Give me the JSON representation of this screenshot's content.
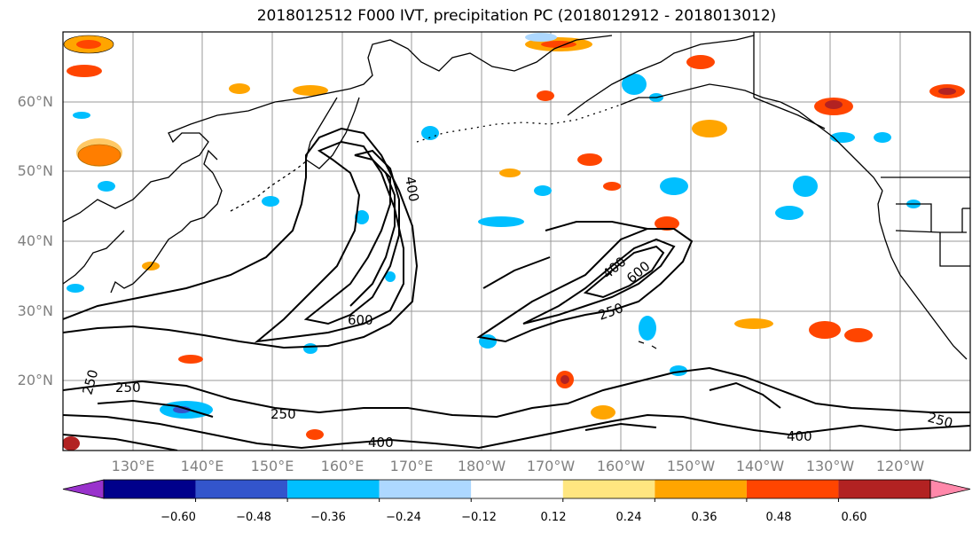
{
  "map": {
    "title": "2018012512 F000 IVT, precipitation PC (2018012912 - 2018013012)",
    "lat_labels": [
      "60°N",
      "50°N",
      "40°N",
      "30°N",
      "20°N"
    ],
    "lon_labels": [
      "130°E",
      "140°E",
      "150°E",
      "160°E",
      "170°E",
      "180°W",
      "170°W",
      "160°W",
      "150°W",
      "140°W",
      "130°W",
      "120°W"
    ],
    "contour_labels": [
      "600",
      "400",
      "250",
      "250",
      "400",
      "250",
      "400",
      "600",
      "250",
      "250",
      "400"
    ],
    "colorbar": {
      "ticks": [
        "−0.60",
        "−0.48",
        "−0.36",
        "−0.24",
        "−0.12",
        "0.12",
        "0.24",
        "0.36",
        "0.48",
        "0.60"
      ],
      "colors": [
        "#9932CC",
        "#00008B",
        "#3355CC",
        "#00BFFF",
        "#ADD8FF",
        "#FFFFFF",
        "#FFE680",
        "#FFA500",
        "#FF4500",
        "#B22222",
        "#FF88AA"
      ]
    }
  }
}
